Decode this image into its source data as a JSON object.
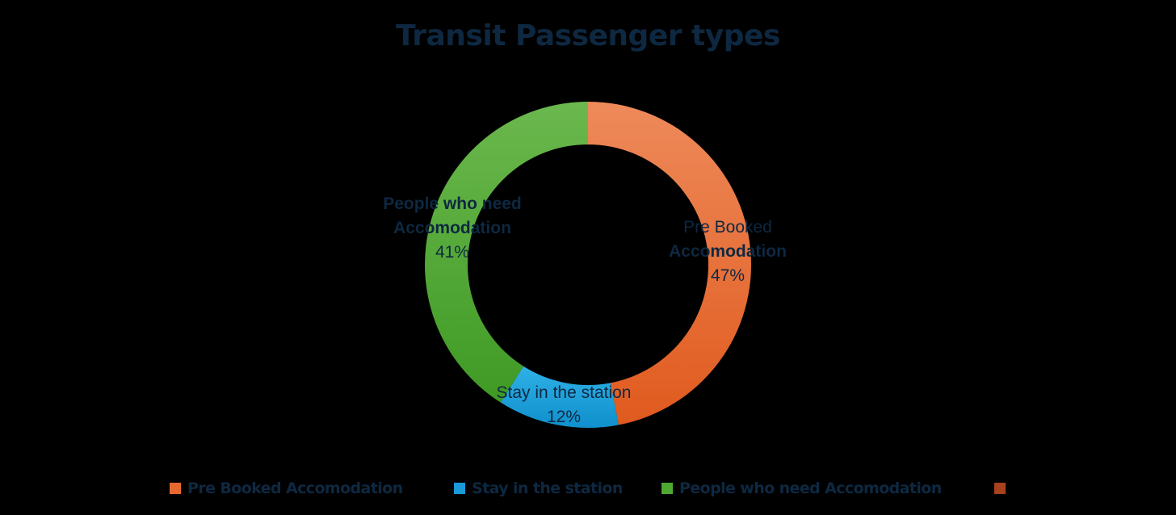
{
  "chart_data": {
    "type": "pie",
    "variant": "donut",
    "title": "Transit Passenger types",
    "slices": [
      {
        "label": "Pre Booked Accomodation",
        "value": 47,
        "percent_label": "47%",
        "color": "#e8692f",
        "label_lines": [
          "Pre Booked",
          "Accomodation"
        ]
      },
      {
        "label": "Stay in the station",
        "value": 12,
        "percent_label": "12%",
        "color": "#1a9bd8",
        "label_lines": [
          "Stay in the station"
        ]
      },
      {
        "label": "People who need Accomodation",
        "value": 41,
        "percent_label": "41%",
        "color": "#4ea832",
        "label_lines": [
          "People who need",
          "Accomodation"
        ]
      }
    ],
    "legend": {
      "position": "bottom",
      "entries": [
        {
          "label": "Pre Booked Accomodation",
          "color": "#e8692f"
        },
        {
          "label": "Stay in the station",
          "color": "#1a9bd8"
        },
        {
          "label": "People who need Accomodation",
          "color": "#4ea832"
        },
        {
          "label": "",
          "color": "#a8421c"
        }
      ]
    }
  }
}
